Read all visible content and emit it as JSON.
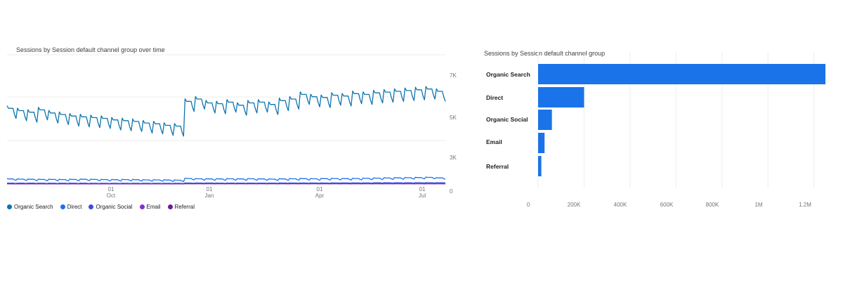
{
  "chart_data": [
    {
      "type": "line",
      "title": "Sessions by Session default channel group over time",
      "x_tick_labels": [
        {
          "day": "01",
          "month": "Oct"
        },
        {
          "day": "01",
          "month": "Jan"
        },
        {
          "day": "01",
          "month": "Apr"
        },
        {
          "day": "01",
          "month": "Jul"
        }
      ],
      "y_tick_labels": [
        "7K",
        "5K",
        "3K",
        "0"
      ],
      "ylim": [
        0,
        7000
      ],
      "grid": true,
      "legend": "bottom-left",
      "series": [
        {
          "name": "Organic Search",
          "color": "#0b74b0",
          "weekly_values": [
            4900,
            4750,
            4650,
            4800,
            4600,
            4500,
            4400,
            4350,
            4300,
            4250,
            4150,
            4100,
            4050,
            3950,
            3900,
            3800,
            3750,
            5350,
            5500,
            5250,
            5200,
            5300,
            5100,
            5250,
            5300,
            5150,
            5400,
            5500,
            5800,
            5650,
            5600,
            5750,
            5700,
            5850,
            5800,
            5900,
            5950,
            6000,
            6050,
            6100,
            6150,
            6000
          ],
          "weekend_dip": 650
        },
        {
          "name": "Direct",
          "color": "#1a73e8",
          "weekly_values": [
            330,
            320,
            310,
            300,
            300,
            290,
            300,
            310,
            300,
            290,
            280,
            290,
            280,
            270,
            270,
            260,
            250,
            360,
            340,
            330,
            330,
            340,
            330,
            340,
            330,
            320,
            330,
            340,
            350,
            340,
            350,
            360,
            350,
            360,
            370,
            380,
            390,
            400,
            410,
            420,
            430,
            400
          ],
          "weekend_dip": 90
        },
        {
          "name": "Organic Social",
          "color": "#3b49e0",
          "weekly_values": [
            60,
            60,
            60,
            55,
            55,
            55,
            55,
            55,
            50,
            50,
            50,
            50,
            50,
            50,
            50,
            50,
            50,
            70,
            70,
            70,
            65,
            65,
            65,
            65,
            65,
            65,
            70,
            70,
            70,
            70,
            70,
            75,
            75,
            75,
            75,
            80,
            80,
            80,
            80,
            85,
            85,
            85
          ],
          "weekend_dip": 15
        },
        {
          "name": "Email",
          "color": "#8430ce",
          "weekly_values": [
            25,
            25,
            25,
            25,
            25,
            25,
            25,
            25,
            25,
            25,
            25,
            25,
            25,
            25,
            25,
            25,
            25,
            30,
            30,
            30,
            30,
            30,
            30,
            30,
            30,
            30,
            30,
            30,
            30,
            30,
            30,
            30,
            30,
            30,
            30,
            30,
            30,
            30,
            30,
            30,
            30,
            30
          ],
          "weekend_dip": 10
        },
        {
          "name": "Referral",
          "color": "#6a1b9a",
          "weekly_values": [
            15,
            15,
            15,
            15,
            15,
            15,
            15,
            15,
            15,
            15,
            15,
            15,
            15,
            15,
            15,
            15,
            15,
            20,
            20,
            20,
            20,
            20,
            20,
            20,
            20,
            20,
            20,
            20,
            20,
            20,
            20,
            20,
            20,
            20,
            20,
            20,
            20,
            20,
            20,
            20,
            20,
            20
          ],
          "weekend_dip": 5
        }
      ]
    },
    {
      "type": "bar",
      "orientation": "horizontal",
      "title": "Sessions by Session default channel group",
      "categories": [
        "Organic Search",
        "Direct",
        "Organic Social",
        "Email",
        "Referral"
      ],
      "values": [
        1250000,
        200000,
        60000,
        28000,
        14000
      ],
      "x_tick_labels": [
        "0",
        "200K",
        "400K",
        "600K",
        "800K",
        "1M",
        "1.2M"
      ],
      "xlim": [
        0,
        1250000
      ],
      "grid": true,
      "color": "#1a73e8"
    }
  ]
}
